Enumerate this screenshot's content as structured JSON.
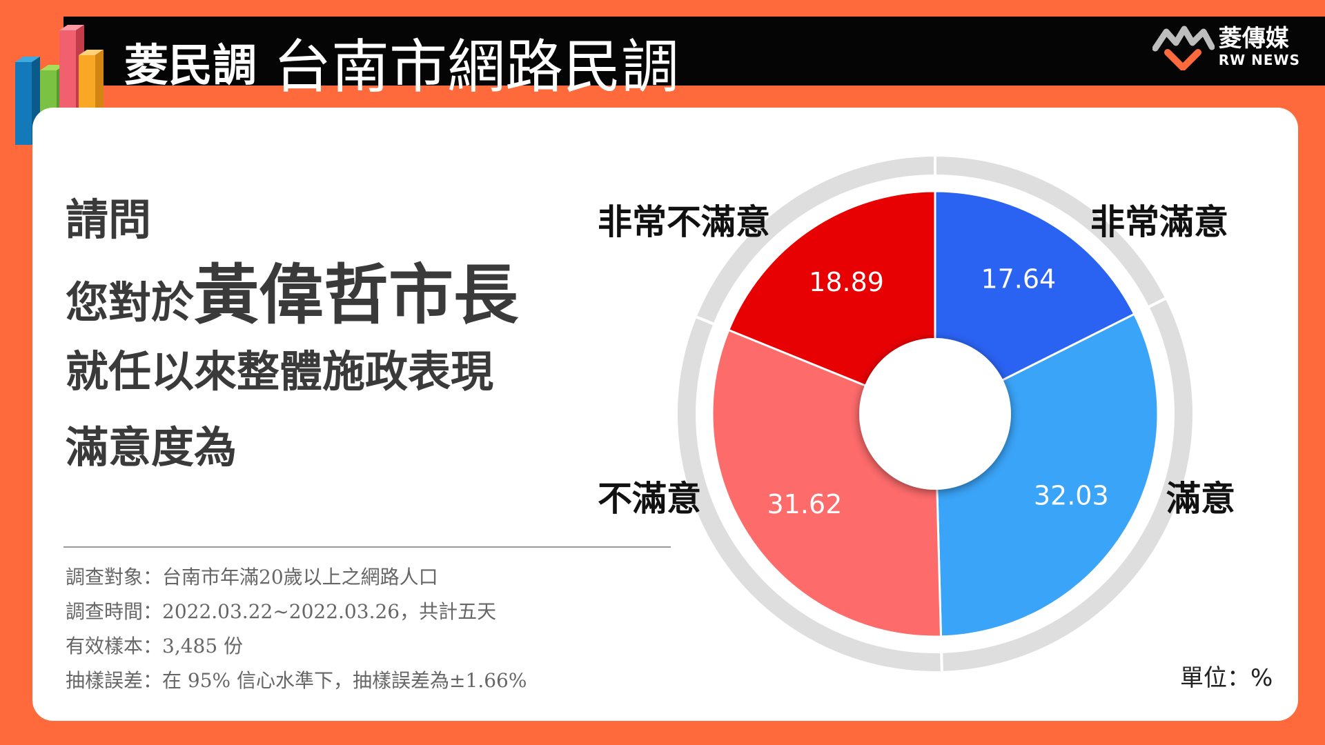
{
  "header": {
    "title_small": "菱民調",
    "title_main": "台南市網路民調",
    "brand_cn": "菱傳媒",
    "brand_en": "RW NEWS"
  },
  "question": {
    "line1": "請問",
    "line2_prefix": "您對於",
    "line2_emphasis": "黃偉哲市長",
    "line3": "就任以來整體施政表現",
    "line4": "滿意度為"
  },
  "notes": [
    "調查對象：台南市年滿20歲以上之網路人口",
    "調查時間：2022.03.22~2022.03.26，共計五天",
    "有效樣本：3,485 份",
    "抽樣誤差：在 95% 信心水準下，抽樣誤差為±1.66%"
  ],
  "unit": "單位：%",
  "colors": {
    "very_satisfied": "#2a62f2",
    "satisfied": "#3aa4f8",
    "dissatisfied": "#fe6b6b",
    "very_dissatisfied": "#e80103",
    "ring": "#dedede",
    "background": "#ff6a3d"
  },
  "chart_data": {
    "type": "pie",
    "categories": [
      "非常滿意",
      "滿意",
      "不滿意",
      "非常不滿意"
    ],
    "values": [
      17.64,
      32.03,
      31.62,
      18.89
    ],
    "value_labels": [
      "17.64",
      "32.03",
      "31.62",
      "18.89"
    ],
    "unit": "%",
    "donut": true
  }
}
